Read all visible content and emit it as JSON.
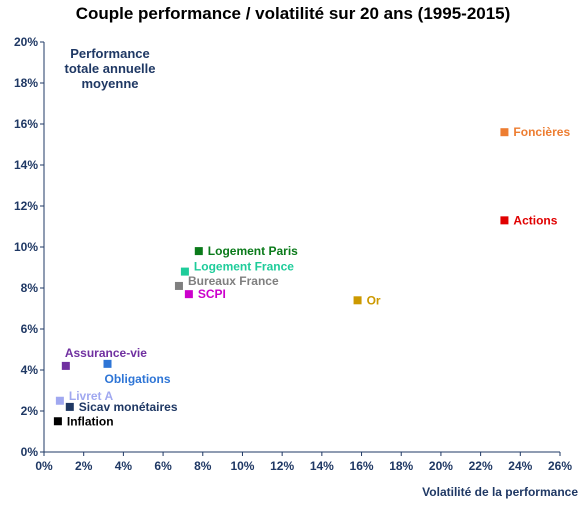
{
  "chart_data": {
    "type": "scatter",
    "title": "Couple performance / volatilité sur 20 ans (1995-2015)",
    "ylabel_lines": [
      "Performance",
      "totale annuelle",
      "moyenne"
    ],
    "xlabel": "Volatilité de la performance",
    "xlim": [
      0,
      26
    ],
    "ylim": [
      0,
      20
    ],
    "x_ticks": [
      0,
      2,
      4,
      6,
      8,
      10,
      12,
      14,
      16,
      18,
      20,
      22,
      24,
      26
    ],
    "y_ticks": [
      0,
      2,
      4,
      6,
      8,
      10,
      12,
      14,
      16,
      18,
      20
    ],
    "x_tick_labels": [
      "0%",
      "2%",
      "4%",
      "6%",
      "8%",
      "10%",
      "12%",
      "14%",
      "16%",
      "18%",
      "20%",
      "22%",
      "24%",
      "26%"
    ],
    "y_tick_labels": [
      "0%",
      "2%",
      "4%",
      "6%",
      "8%",
      "10%",
      "12%",
      "14%",
      "16%",
      "18%",
      "20%"
    ],
    "grid": false,
    "axis_color": "#1F3864",
    "points": [
      {
        "label": "Foncières",
        "x": 23.2,
        "y": 15.6,
        "color": "#ED7D31",
        "label_pos": "right"
      },
      {
        "label": "Actions",
        "x": 23.2,
        "y": 11.3,
        "color": "#E00000",
        "label_pos": "right"
      },
      {
        "label": "Logement Paris",
        "x": 7.8,
        "y": 9.8,
        "color": "#0A7A1A",
        "label_pos": "right"
      },
      {
        "label": "Logement France",
        "x": 7.1,
        "y": 8.8,
        "color": "#1ECC9A",
        "label_pos": "right-up"
      },
      {
        "label": "Bureaux France",
        "x": 6.8,
        "y": 8.1,
        "color": "#7F7F7F",
        "label_pos": "right-up"
      },
      {
        "label": "SCPI",
        "x": 7.3,
        "y": 7.7,
        "color": "#CC00CC",
        "label_pos": "right"
      },
      {
        "label": "Or",
        "x": 15.8,
        "y": 7.4,
        "color": "#CC9900",
        "label_pos": "right"
      },
      {
        "label": "Assurance-vie",
        "x": 1.1,
        "y": 4.2,
        "color": "#7030A0",
        "label_pos": "above"
      },
      {
        "label": "Obligations",
        "x": 3.2,
        "y": 4.3,
        "color": "#2E75D6",
        "label_pos": "below"
      },
      {
        "label": "Livret A",
        "x": 0.8,
        "y": 2.5,
        "color": "#A0A8F0",
        "label_pos": "right-up"
      },
      {
        "label": "Sicav monétaires",
        "x": 1.3,
        "y": 2.2,
        "color": "#1F3864",
        "label_pos": "right"
      },
      {
        "label": "Inflation",
        "x": 0.7,
        "y": 1.5,
        "color": "#000000",
        "label_pos": "right"
      }
    ]
  }
}
